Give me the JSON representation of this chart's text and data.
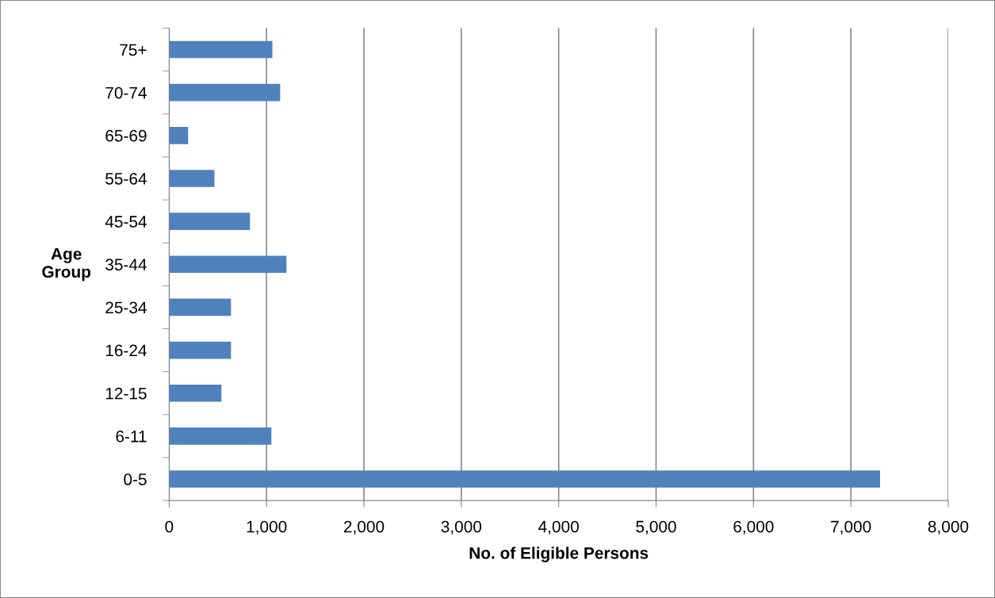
{
  "chart_data": {
    "type": "bar",
    "orientation": "horizontal",
    "xlabel": "No. of Eligible Persons",
    "ylabel": "Age Group",
    "categories": [
      "75+",
      "70-74",
      "65-69",
      "55-64",
      "45-54",
      "35-44",
      "25-34",
      "16-24",
      "12-15",
      "6-11",
      "0-5"
    ],
    "values": [
      1060,
      1140,
      195,
      465,
      830,
      1205,
      635,
      635,
      537,
      1050,
      7300
    ],
    "color": "#4f81bd",
    "xlim": [
      0,
      8000
    ],
    "xticks": [
      0,
      {
        "value": 1000,
        "label": "1,000"
      },
      {
        "value": 2000,
        "label": "2,000"
      },
      {
        "value": 3000,
        "label": "3,000"
      },
      {
        "value": 4000,
        "label": "4,000"
      },
      {
        "value": 5000,
        "label": "5,000"
      },
      {
        "value": 6000,
        "label": "6,000"
      },
      {
        "value": 7000,
        "label": "7,000"
      },
      {
        "value": 8000,
        "label": "8,000"
      }
    ],
    "grid": "x",
    "legend": false
  }
}
